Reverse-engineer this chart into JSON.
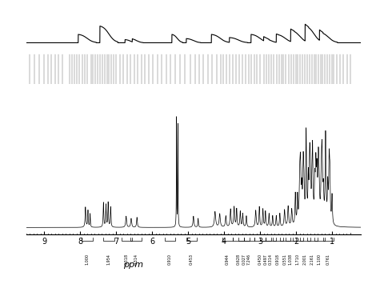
{
  "title": "",
  "xlabel_ppm": "ppm",
  "xlim": [
    9.5,
    0.2
  ],
  "ylim_spectrum": [
    -0.05,
    1.1
  ],
  "x_ticks": [
    9,
    8,
    7,
    6,
    5,
    4,
    3,
    2,
    1
  ],
  "background_color": "#ffffff",
  "spectrum_color": "#000000",
  "integration_values": [
    {
      "ppm": 7.8,
      "value": "1.000"
    },
    {
      "ppm": 7.2,
      "value": "1.954"
    },
    {
      "ppm": 6.7,
      "value": "0.318"
    },
    {
      "ppm": 6.45,
      "value": "0.314"
    },
    {
      "ppm": 5.5,
      "value": "0.910"
    },
    {
      "ppm": 4.9,
      "value": "0.453"
    },
    {
      "ppm": 3.9,
      "value": "0.944"
    },
    {
      "ppm": 3.6,
      "value": "0.628"
    },
    {
      "ppm": 3.45,
      "value": "0.027"
    },
    {
      "ppm": 3.3,
      "value": "7.246"
    },
    {
      "ppm": 3.0,
      "value": "0.450"
    },
    {
      "ppm": 2.85,
      "value": "0.497"
    },
    {
      "ppm": 2.7,
      "value": "0.314"
    },
    {
      "ppm": 2.5,
      "value": "0.918"
    },
    {
      "ppm": 2.3,
      "value": "0.551"
    },
    {
      "ppm": 2.15,
      "value": "1.038"
    },
    {
      "ppm": 1.95,
      "value": "1.710"
    },
    {
      "ppm": 1.75,
      "value": "2.001"
    },
    {
      "ppm": 1.55,
      "value": "2.161"
    },
    {
      "ppm": 1.35,
      "value": "1.100"
    },
    {
      "ppm": 1.1,
      "value": "0.761"
    }
  ]
}
